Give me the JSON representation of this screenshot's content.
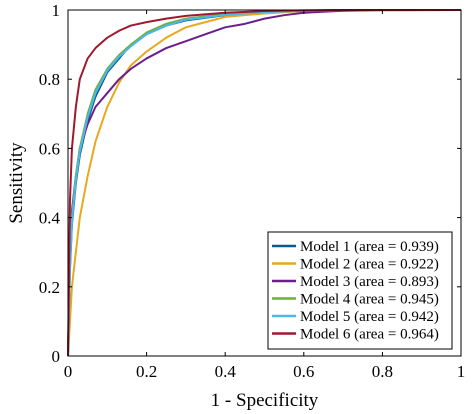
{
  "chart_data": {
    "type": "line",
    "title": "",
    "xlabel": "1 - Specificity",
    "ylabel": "Sensitivity",
    "xlim": [
      0,
      1
    ],
    "ylim": [
      0,
      1
    ],
    "x_ticks": [
      "0",
      "0.2",
      "0.4",
      "0.6",
      "0.8",
      "1"
    ],
    "y_ticks": [
      "0",
      "0.2",
      "0.4",
      "0.6",
      "0.8",
      "1"
    ],
    "grid": false,
    "legend_position": "bottom-right",
    "series": [
      {
        "name": "Model 1 (area = 0.939)",
        "color": "#0C5A8C",
        "points": [
          [
            0,
            0
          ],
          [
            0.005,
            0.25
          ],
          [
            0.01,
            0.38
          ],
          [
            0.02,
            0.5
          ],
          [
            0.03,
            0.58
          ],
          [
            0.05,
            0.68
          ],
          [
            0.07,
            0.75
          ],
          [
            0.1,
            0.82
          ],
          [
            0.13,
            0.86
          ],
          [
            0.16,
            0.9
          ],
          [
            0.2,
            0.93
          ],
          [
            0.25,
            0.955
          ],
          [
            0.3,
            0.97
          ],
          [
            0.4,
            0.985
          ],
          [
            0.5,
            0.993
          ],
          [
            0.6,
            0.997
          ],
          [
            0.7,
            0.999
          ],
          [
            1,
            1
          ]
        ]
      },
      {
        "name": "Model 2 (area = 0.922)",
        "color": "#E8A820",
        "points": [
          [
            0,
            0
          ],
          [
            0.005,
            0.1
          ],
          [
            0.01,
            0.2
          ],
          [
            0.02,
            0.3
          ],
          [
            0.03,
            0.4
          ],
          [
            0.05,
            0.52
          ],
          [
            0.07,
            0.62
          ],
          [
            0.1,
            0.72
          ],
          [
            0.13,
            0.79
          ],
          [
            0.16,
            0.84
          ],
          [
            0.2,
            0.88
          ],
          [
            0.25,
            0.92
          ],
          [
            0.3,
            0.95
          ],
          [
            0.35,
            0.965
          ],
          [
            0.4,
            0.98
          ],
          [
            0.5,
            0.99
          ],
          [
            0.6,
            0.997
          ],
          [
            0.7,
            0.999
          ],
          [
            1,
            1
          ]
        ]
      },
      {
        "name": "Model 3 (area = 0.893)",
        "color": "#6B1F8A",
        "points": [
          [
            0,
            0
          ],
          [
            0.005,
            0.3
          ],
          [
            0.01,
            0.42
          ],
          [
            0.02,
            0.52
          ],
          [
            0.03,
            0.6
          ],
          [
            0.05,
            0.67
          ],
          [
            0.07,
            0.72
          ],
          [
            0.1,
            0.76
          ],
          [
            0.13,
            0.8
          ],
          [
            0.16,
            0.83
          ],
          [
            0.2,
            0.86
          ],
          [
            0.25,
            0.89
          ],
          [
            0.3,
            0.91
          ],
          [
            0.35,
            0.93
          ],
          [
            0.4,
            0.95
          ],
          [
            0.45,
            0.96
          ],
          [
            0.5,
            0.975
          ],
          [
            0.55,
            0.985
          ],
          [
            0.6,
            0.992
          ],
          [
            0.7,
            0.998
          ],
          [
            0.8,
            1
          ],
          [
            1,
            1
          ]
        ]
      },
      {
        "name": "Model 4 (area = 0.945)",
        "color": "#6FAF3C",
        "points": [
          [
            0,
            0
          ],
          [
            0.005,
            0.28
          ],
          [
            0.01,
            0.4
          ],
          [
            0.02,
            0.52
          ],
          [
            0.03,
            0.6
          ],
          [
            0.05,
            0.7
          ],
          [
            0.07,
            0.77
          ],
          [
            0.1,
            0.83
          ],
          [
            0.13,
            0.87
          ],
          [
            0.16,
            0.9
          ],
          [
            0.2,
            0.935
          ],
          [
            0.25,
            0.96
          ],
          [
            0.3,
            0.975
          ],
          [
            0.4,
            0.988
          ],
          [
            0.5,
            0.995
          ],
          [
            0.6,
            0.998
          ],
          [
            0.7,
            1
          ],
          [
            1,
            1
          ]
        ]
      },
      {
        "name": "Model 5 (area = 0.942)",
        "color": "#4DB8E8",
        "points": [
          [
            0,
            0
          ],
          [
            0.005,
            0.26
          ],
          [
            0.01,
            0.39
          ],
          [
            0.02,
            0.51
          ],
          [
            0.03,
            0.59
          ],
          [
            0.05,
            0.69
          ],
          [
            0.07,
            0.76
          ],
          [
            0.1,
            0.825
          ],
          [
            0.13,
            0.865
          ],
          [
            0.16,
            0.895
          ],
          [
            0.2,
            0.93
          ],
          [
            0.25,
            0.955
          ],
          [
            0.3,
            0.972
          ],
          [
            0.4,
            0.986
          ],
          [
            0.5,
            0.994
          ],
          [
            0.6,
            0.998
          ],
          [
            0.7,
            1
          ],
          [
            1,
            1
          ]
        ]
      },
      {
        "name": "Model 6 (area = 0.964)",
        "color": "#A0182E",
        "points": [
          [
            0,
            0
          ],
          [
            0.005,
            0.45
          ],
          [
            0.01,
            0.6
          ],
          [
            0.02,
            0.72
          ],
          [
            0.03,
            0.8
          ],
          [
            0.05,
            0.86
          ],
          [
            0.07,
            0.89
          ],
          [
            0.1,
            0.92
          ],
          [
            0.13,
            0.94
          ],
          [
            0.16,
            0.955
          ],
          [
            0.2,
            0.965
          ],
          [
            0.25,
            0.975
          ],
          [
            0.3,
            0.983
          ],
          [
            0.4,
            0.992
          ],
          [
            0.5,
            0.997
          ],
          [
            0.6,
            0.999
          ],
          [
            0.7,
            1
          ],
          [
            1,
            1
          ]
        ]
      }
    ]
  }
}
